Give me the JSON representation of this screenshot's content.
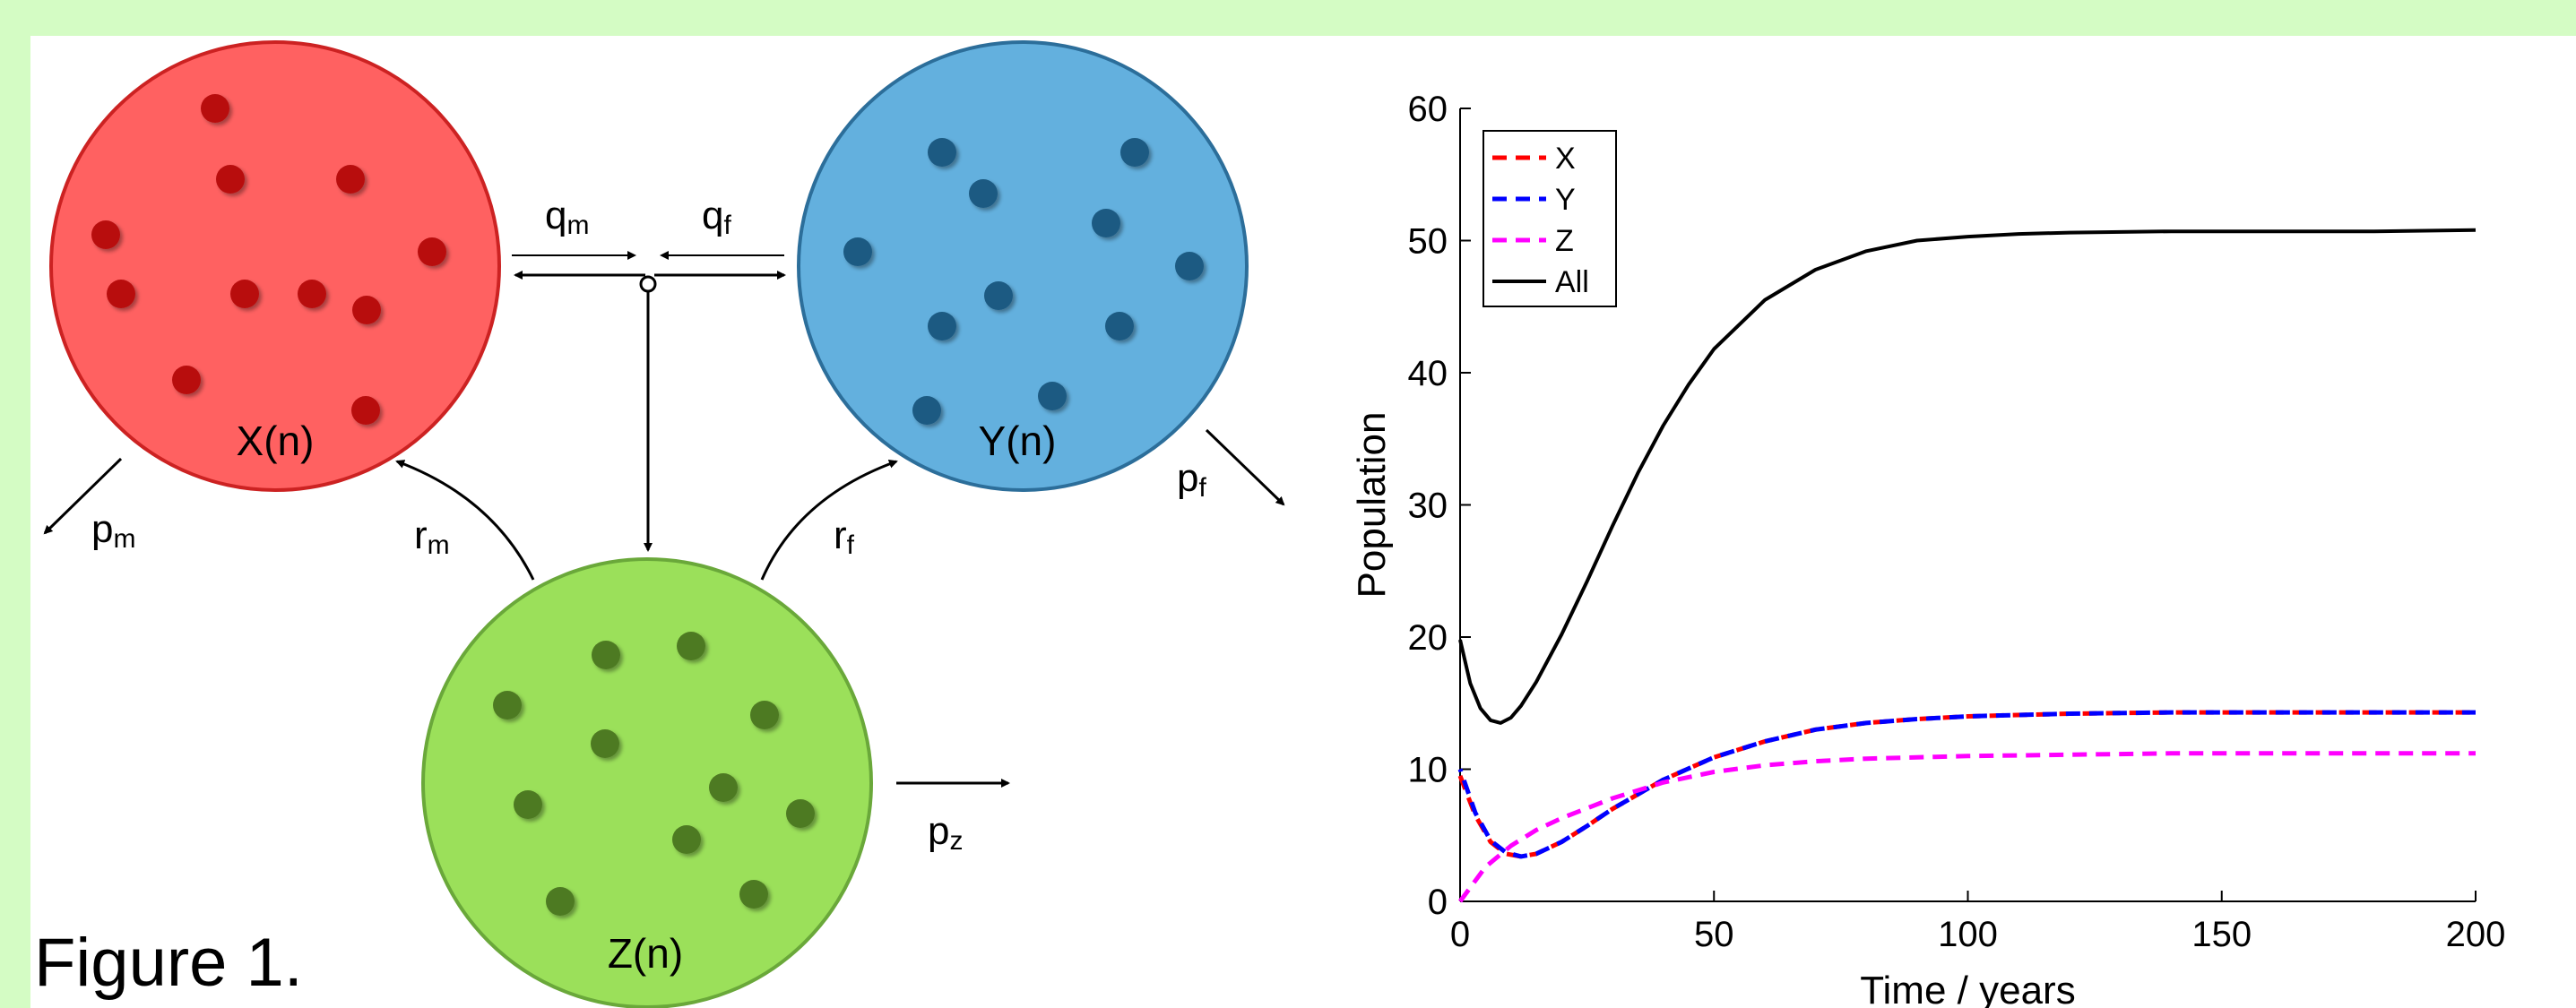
{
  "figure_label": "Figure 1.",
  "colors": {
    "background": "#d4fcc4",
    "x_fill": "#ff6161",
    "x_stroke": "#cc2222",
    "x_dot": "#b80f0f",
    "y_fill": "#63b0de",
    "y_stroke": "#2c6e9a",
    "y_dot": "#1c5a82",
    "z_fill": "#9be05a",
    "z_stroke": "#6aa83a",
    "z_dot": "#4e7a22"
  },
  "diagram": {
    "compartments": {
      "x": {
        "label": "X(n)"
      },
      "y": {
        "label": "Y(n)"
      },
      "z": {
        "label": "Z(n)"
      }
    },
    "rates": {
      "qm": {
        "main": "q",
        "sub": "m"
      },
      "qf": {
        "main": "q",
        "sub": "f"
      },
      "rm": {
        "main": "r",
        "sub": "m"
      },
      "rf": {
        "main": "r",
        "sub": "f"
      },
      "pm": {
        "main": "p",
        "sub": "m"
      },
      "pf": {
        "main": "p",
        "sub": "f"
      },
      "pz": {
        "main": "p",
        "sub": "z"
      }
    }
  },
  "chart_data": {
    "type": "line",
    "xlabel": "Time / years",
    "ylabel": "Population",
    "xlim": [
      0,
      200
    ],
    "ylim": [
      0,
      60
    ],
    "xticks": [
      0,
      50,
      100,
      150,
      200
    ],
    "yticks": [
      0,
      10,
      20,
      30,
      40,
      50,
      60
    ],
    "grid": false,
    "legend_position": "top-left",
    "series": [
      {
        "name": "X",
        "style": "dashed",
        "color": "#ff0000",
        "x": [
          0,
          3,
          6,
          9,
          12,
          15,
          20,
          25,
          30,
          40,
          50,
          60,
          70,
          80,
          90,
          100,
          120,
          140,
          160,
          180,
          200
        ],
        "y": [
          9.5,
          6.5,
          4.5,
          3.6,
          3.4,
          3.6,
          4.5,
          5.7,
          7.0,
          9.2,
          10.9,
          12.1,
          13.0,
          13.5,
          13.8,
          14.0,
          14.2,
          14.3,
          14.3,
          14.3,
          14.3
        ]
      },
      {
        "name": "Y",
        "style": "dashed",
        "color": "#0000ff",
        "x": [
          0,
          3,
          6,
          9,
          12,
          15,
          20,
          25,
          30,
          40,
          50,
          60,
          70,
          80,
          90,
          100,
          120,
          140,
          160,
          180,
          200
        ],
        "y": [
          10.0,
          6.7,
          4.6,
          3.7,
          3.4,
          3.6,
          4.5,
          5.7,
          7.0,
          9.2,
          10.9,
          12.1,
          13.0,
          13.5,
          13.8,
          14.0,
          14.2,
          14.3,
          14.3,
          14.3,
          14.3
        ]
      },
      {
        "name": "Z",
        "style": "dashed",
        "color": "#ff00ff",
        "x": [
          0,
          5,
          10,
          15,
          20,
          30,
          40,
          50,
          60,
          70,
          80,
          100,
          120,
          140,
          160,
          180,
          200
        ],
        "y": [
          0,
          2.6,
          4.2,
          5.4,
          6.3,
          7.8,
          9.0,
          9.8,
          10.3,
          10.6,
          10.8,
          11.0,
          11.1,
          11.2,
          11.2,
          11.2,
          11.2
        ]
      },
      {
        "name": "All",
        "style": "solid",
        "color": "#000000",
        "x": [
          0,
          2,
          4,
          6,
          8,
          10,
          12,
          15,
          20,
          25,
          30,
          35,
          40,
          45,
          50,
          60,
          70,
          80,
          90,
          100,
          110,
          120,
          140,
          160,
          180,
          200
        ],
        "y": [
          19.8,
          16.5,
          14.6,
          13.7,
          13.5,
          13.9,
          14.8,
          16.6,
          20.2,
          24.2,
          28.4,
          32.4,
          36.0,
          39.1,
          41.8,
          45.5,
          47.8,
          49.2,
          50.0,
          50.3,
          50.5,
          50.6,
          50.7,
          50.7,
          50.7,
          50.8
        ]
      }
    ]
  }
}
